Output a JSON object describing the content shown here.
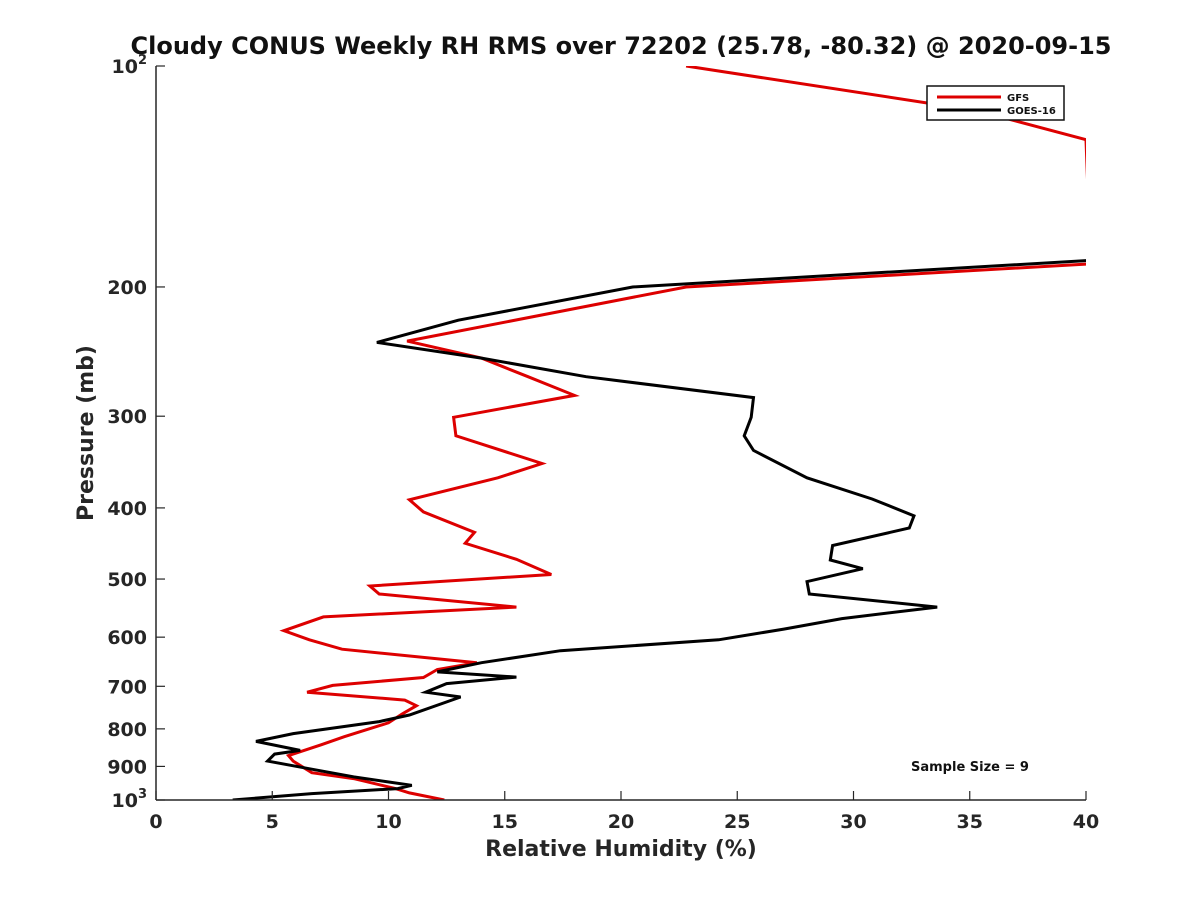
{
  "chart_data": {
    "type": "line",
    "title": "Cloudy CONUS Weekly RH RMS over 72202 (25.78, -80.32) @ 2020-09-15",
    "xlabel": "Relative Humidity (%)",
    "ylabel": "Pressure (mb)",
    "xlim": [
      0,
      40
    ],
    "ylim": [
      100,
      1000
    ],
    "yscale": "log",
    "yreversed": true,
    "x_ticks": [
      "0",
      "5",
      "10",
      "15",
      "20",
      "25",
      "30",
      "35",
      "40"
    ],
    "y_ticks": [
      {
        "value": 100,
        "base": "10",
        "exp": "2"
      },
      {
        "value": 200,
        "label": "200"
      },
      {
        "value": 300,
        "label": "300"
      },
      {
        "value": 400,
        "label": "400"
      },
      {
        "value": 500,
        "label": "500"
      },
      {
        "value": 600,
        "label": "600"
      },
      {
        "value": 700,
        "label": "700"
      },
      {
        "value": 800,
        "label": "800"
      },
      {
        "value": 900,
        "label": "900"
      },
      {
        "value": 1000,
        "base": "10",
        "exp": "3"
      }
    ],
    "legend_position": "top-right",
    "annotation": "Sample Size = 9",
    "series": [
      {
        "name": "GFS",
        "color": "#dd0000",
        "points": [
          [
            22.8,
            100
          ],
          [
            35.3,
            115
          ],
          [
            40,
            126
          ],
          [
            40.2,
            186
          ],
          [
            22.8,
            200
          ],
          [
            10.8,
            237
          ],
          [
            14.0,
            250
          ],
          [
            16.0,
            265
          ],
          [
            18.0,
            281
          ],
          [
            12.8,
            301
          ],
          [
            12.9,
            319
          ],
          [
            16.6,
            348
          ],
          [
            14.7,
            364
          ],
          [
            10.9,
            390
          ],
          [
            11.5,
            405
          ],
          [
            13.7,
            432
          ],
          [
            13.3,
            447
          ],
          [
            15.5,
            470
          ],
          [
            17.0,
            493
          ],
          [
            9.2,
            511
          ],
          [
            9.6,
            524
          ],
          [
            15.5,
            546
          ],
          [
            7.2,
            563
          ],
          [
            5.5,
            588
          ],
          [
            6.6,
            605
          ],
          [
            8.0,
            623
          ],
          [
            13.8,
            650
          ],
          [
            12.1,
            664
          ],
          [
            11.5,
            681
          ],
          [
            7.6,
            698
          ],
          [
            6.5,
            713
          ],
          [
            10.7,
            731
          ],
          [
            11.2,
            744
          ],
          [
            10.6,
            763
          ],
          [
            10.0,
            785
          ],
          [
            8.1,
            820
          ],
          [
            7.1,
            841
          ],
          [
            5.7,
            870
          ],
          [
            5.9,
            885
          ],
          [
            6.7,
            918
          ],
          [
            8.5,
            935
          ],
          [
            10.3,
            965
          ],
          [
            10.9,
            978
          ],
          [
            12.4,
            1000
          ]
        ]
      },
      {
        "name": "GOES-16",
        "color": "#000000",
        "points": [
          [
            40.2,
            184
          ],
          [
            20.5,
            200
          ],
          [
            13.0,
            222
          ],
          [
            9.5,
            238
          ],
          [
            14.0,
            250
          ],
          [
            18.5,
            265
          ],
          [
            25.7,
            283
          ],
          [
            25.6,
            301
          ],
          [
            25.3,
            319
          ],
          [
            25.7,
            334
          ],
          [
            28.0,
            364
          ],
          [
            30.8,
            389
          ],
          [
            32.6,
            410
          ],
          [
            32.4,
            426
          ],
          [
            29.1,
            450
          ],
          [
            29.0,
            471
          ],
          [
            30.4,
            484
          ],
          [
            28.0,
            504
          ],
          [
            28.1,
            524
          ],
          [
            33.6,
            546
          ],
          [
            29.5,
            566
          ],
          [
            27.0,
            585
          ],
          [
            24.2,
            605
          ],
          [
            17.4,
            626
          ],
          [
            14.0,
            650
          ],
          [
            12.1,
            669
          ],
          [
            15.5,
            680
          ],
          [
            12.5,
            694
          ],
          [
            11.6,
            713
          ],
          [
            13.1,
            724
          ],
          [
            10.9,
            766
          ],
          [
            9.6,
            782
          ],
          [
            5.9,
            812
          ],
          [
            4.3,
            832
          ],
          [
            6.2,
            856
          ],
          [
            5.1,
            866
          ],
          [
            4.8,
            885
          ],
          [
            6.7,
            908
          ],
          [
            8.5,
            930
          ],
          [
            9.9,
            944
          ],
          [
            11.0,
            955
          ],
          [
            10.4,
            965
          ],
          [
            6.7,
            980
          ],
          [
            3.3,
            1000
          ]
        ]
      }
    ]
  }
}
